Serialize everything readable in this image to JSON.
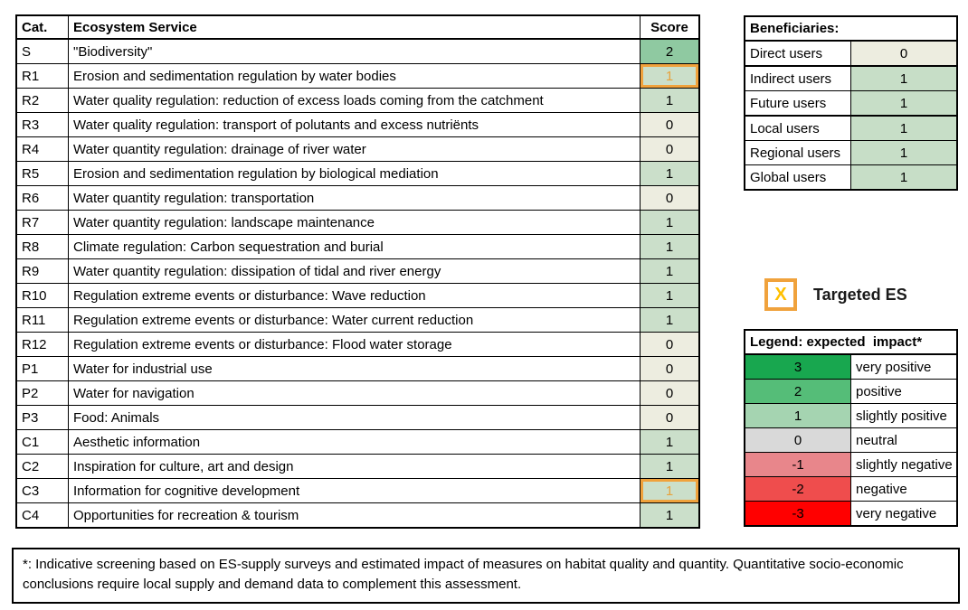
{
  "es_table": {
    "headers": {
      "cat": "Cat.",
      "service": "Ecosystem Service",
      "score": "Score"
    },
    "rows": [
      {
        "cat": "S",
        "service": "\"Biodiversity\"",
        "score": "2",
        "targeted": false
      },
      {
        "cat": "R1",
        "service": "Erosion and sedimentation regulation by water bodies",
        "score": "1",
        "targeted": true
      },
      {
        "cat": "R2",
        "service": "Water quality regulation: reduction of excess loads coming from the catchment",
        "score": "1",
        "targeted": false
      },
      {
        "cat": "R3",
        "service": "Water quality regulation: transport of polutants and excess nutriënts",
        "score": "0",
        "targeted": false
      },
      {
        "cat": "R4",
        "service": "Water quantity regulation: drainage of river water",
        "score": "0",
        "targeted": false
      },
      {
        "cat": "R5",
        "service": "Erosion and sedimentation regulation by biological mediation",
        "score": "1",
        "targeted": false
      },
      {
        "cat": "R6",
        "service": "Water quantity regulation: transportation",
        "score": "0",
        "targeted": false
      },
      {
        "cat": "R7",
        "service": "Water quantity regulation: landscape maintenance",
        "score": "1",
        "targeted": false
      },
      {
        "cat": "R8",
        "service": "Climate regulation: Carbon sequestration and burial",
        "score": "1",
        "targeted": false
      },
      {
        "cat": "R9",
        "service": "Water quantity regulation: dissipation of tidal and river energy",
        "score": "1",
        "targeted": false
      },
      {
        "cat": "R10",
        "service": "Regulation extreme events or disturbance: Wave reduction",
        "score": "1",
        "targeted": false
      },
      {
        "cat": "R11",
        "service": "Regulation extreme events or disturbance: Water current reduction",
        "score": "1",
        "targeted": false
      },
      {
        "cat": "R12",
        "service": "Regulation extreme events or disturbance: Flood water storage",
        "score": "0",
        "targeted": false
      },
      {
        "cat": "P1",
        "service": "Water for industrial use",
        "score": "0",
        "targeted": false
      },
      {
        "cat": "P2",
        "service": "Water for navigation",
        "score": "0",
        "targeted": false
      },
      {
        "cat": "P3",
        "service": "Food: Animals",
        "score": "0",
        "targeted": false
      },
      {
        "cat": "C1",
        "service": "Aesthetic information",
        "score": "1",
        "targeted": false
      },
      {
        "cat": "C2",
        "service": "Inspiration for culture, art and design",
        "score": "1",
        "targeted": false
      },
      {
        "cat": "C3",
        "service": "Information for cognitive development",
        "score": "1",
        "targeted": true
      },
      {
        "cat": "C4",
        "service": "Opportunities for recreation & tourism",
        "score": "1",
        "targeted": false
      }
    ]
  },
  "beneficiaries": {
    "title": "Beneficiaries:",
    "rows": [
      {
        "label": "Direct users",
        "value": "0",
        "thick_bottom": true
      },
      {
        "label": "Indirect users",
        "value": "1",
        "thick_bottom": false
      },
      {
        "label": "Future users",
        "value": "1",
        "thick_bottom": true
      },
      {
        "label": "Local users",
        "value": "1",
        "thick_bottom": false
      },
      {
        "label": "Regional users",
        "value": "1",
        "thick_bottom": false
      },
      {
        "label": "Global users",
        "value": "1",
        "thick_bottom": false
      }
    ]
  },
  "targeted_marker": {
    "symbol": "X",
    "label": "Targeted ES"
  },
  "legend": {
    "title": "Legend: expected  impact*",
    "rows": [
      {
        "value": "3",
        "label": "very positive",
        "color": "#18A74F"
      },
      {
        "value": "2",
        "label": "positive",
        "color": "#55BD78"
      },
      {
        "value": "1",
        "label": "slightly positive",
        "color": "#A5D4B1"
      },
      {
        "value": "0",
        "label": "neutral",
        "color": "#D9D9D9"
      },
      {
        "value": "-1",
        "label": "slightly negative",
        "color": "#E8868B"
      },
      {
        "value": "-2",
        "label": "negative",
        "color": "#EF4D4D"
      },
      {
        "value": "-3",
        "label": "very negative",
        "color": "#FF0000"
      }
    ]
  },
  "footnote": "*: Indicative screening based on ES-supply surveys and estimated impact of measures on habitat quality and quantity. Quantitative socio-economic conclusions require local supply and demand data to complement this assessment.",
  "colors": {
    "score_2": "#8FC9A1",
    "score_1": "#CBDFCA",
    "score_0": "#EDEDE0",
    "beneficiary_1": "#C7DEC7",
    "beneficiary_0": "#EDEDE0",
    "targeted_border": "#F0A23C",
    "targeted_text": "#E8A23C",
    "x_gold": "#FFC000"
  }
}
